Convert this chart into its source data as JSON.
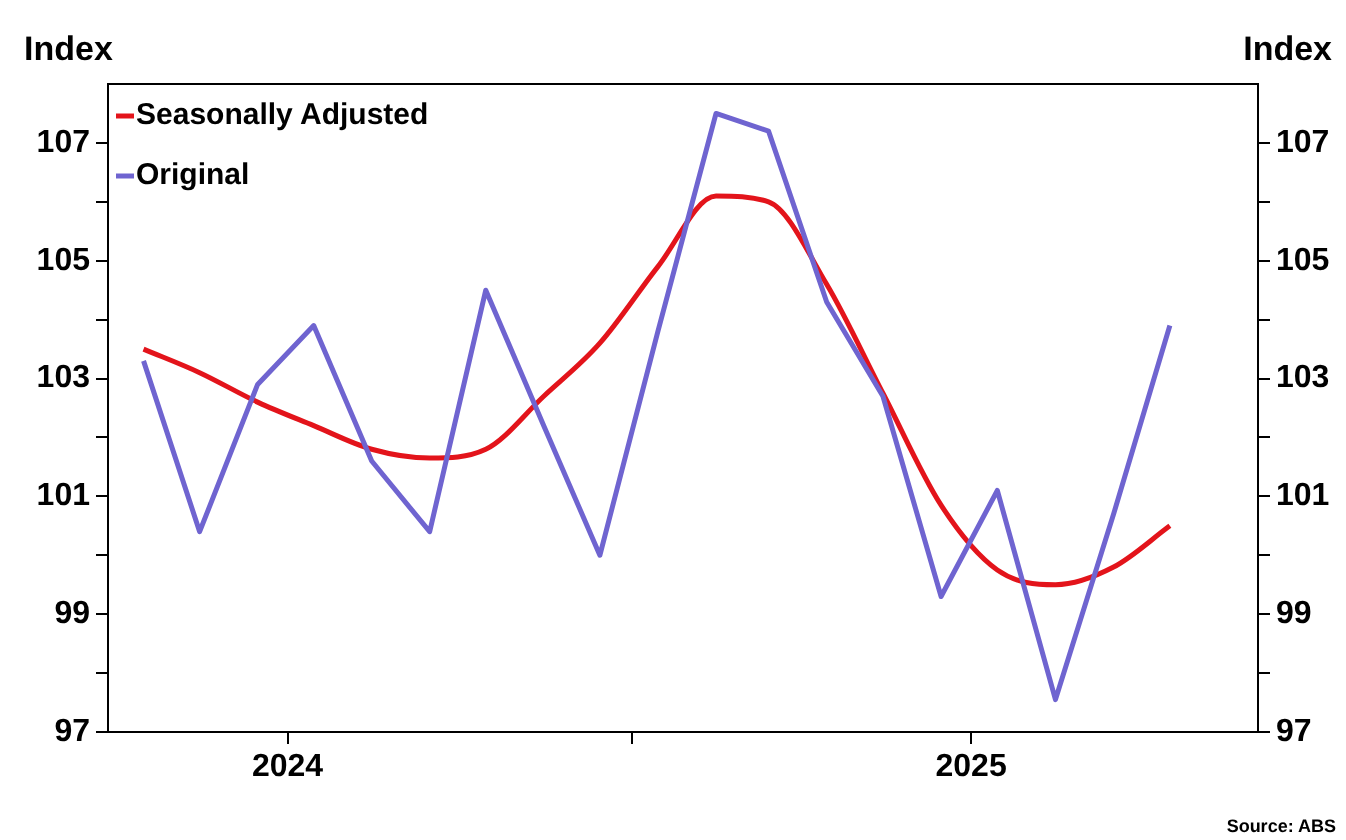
{
  "chart_data": {
    "type": "line",
    "ylabel": "Index",
    "y2label": "Index",
    "x": [
      "2024-04-15",
      "2024-05-15",
      "2024-06-15",
      "2024-07-15",
      "2024-08-15",
      "2024-09-15",
      "2024-10-15",
      "2024-11-15",
      "2024-12-15",
      "2025-01-15",
      "2025-02-15",
      "2025-03-15",
      "2025-04-15",
      "2025-05-15",
      "2025-06-15",
      "2025-07-15",
      "2025-08-15",
      "2025-09-15",
      "2025-10-15"
    ],
    "series": [
      {
        "name": "Seasonally Adjusted",
        "color": "#e3141b",
        "values": [
          103.5,
          103.1,
          102.6,
          102.2,
          101.8,
          101.65,
          101.8,
          102.7,
          103.6,
          104.9,
          106.1,
          106.0,
          104.6,
          102.75,
          100.85,
          99.75,
          99.5,
          99.8,
          100.5
        ]
      },
      {
        "name": "Original",
        "color": "#6f64d0",
        "values": [
          103.3,
          100.4,
          102.9,
          103.9,
          101.6,
          100.4,
          104.5,
          102.2,
          100.0,
          103.8,
          107.5,
          107.2,
          104.3,
          102.7,
          99.3,
          101.1,
          97.55,
          100.7,
          103.9
        ]
      }
    ],
    "xlim": [
      "2024-03-27",
      "2025-12-01"
    ],
    "xticks": [
      {
        "value": "2024-07-01",
        "label": "2024"
      },
      {
        "value": "2025-01-01",
        "label": null
      },
      {
        "value": "2025-07-01",
        "label": "2025"
      }
    ],
    "ylim": [
      97,
      108
    ],
    "yticks": [
      97,
      {
        "value": 98,
        "label": null
      },
      99,
      {
        "value": 100,
        "label": null
      },
      101,
      {
        "value": 102,
        "label": null
      },
      103,
      {
        "value": 104,
        "label": null
      },
      105,
      {
        "value": 106,
        "label": null
      },
      107
    ],
    "y2lim": [
      97,
      108
    ],
    "y2ticks": [
      97,
      {
        "value": 98,
        "label": null
      },
      99,
      {
        "value": 100,
        "label": null
      },
      101,
      {
        "value": 102,
        "label": null
      },
      103,
      {
        "value": 104,
        "label": null
      },
      105,
      {
        "value": 106,
        "label": null
      },
      107
    ],
    "grid": false,
    "legend": "top left",
    "marker": "none",
    "line_style": "solid",
    "annotations": [
      "Source: ABS"
    ]
  }
}
